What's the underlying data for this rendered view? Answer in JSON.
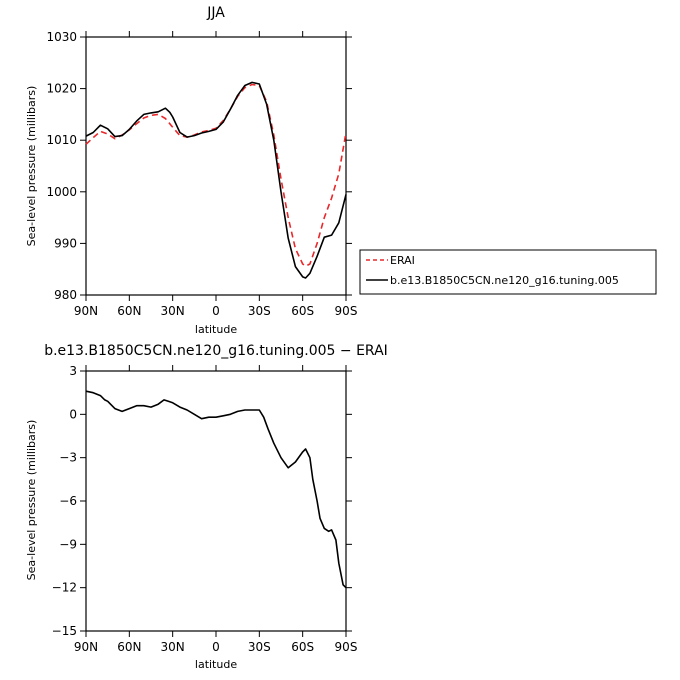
{
  "chart_data": [
    {
      "type": "line",
      "title": "JJA",
      "xlabel": "latitude",
      "ylabel": "Sea-level pressure (millibars)",
      "xlim": [
        90,
        -90
      ],
      "ylim": [
        980,
        1030
      ],
      "x_ticks": [
        90,
        60,
        30,
        0,
        -30,
        -60,
        -90
      ],
      "x_tick_labels": [
        "90N",
        "60N",
        "30N",
        "0",
        "30S",
        "60S",
        "90S"
      ],
      "y_ticks": [
        980,
        990,
        1000,
        1010,
        1020,
        1030
      ],
      "y_tick_labels": [
        "980",
        "990",
        "1000",
        "1010",
        "1020",
        "1030"
      ],
      "grid": false,
      "legend_position": "right",
      "series": [
        {
          "name": "ERAI",
          "color": "#e8282b",
          "dash": "dashed",
          "x": [
            90,
            85,
            80,
            75,
            70,
            65,
            60,
            55,
            50,
            45,
            40,
            35,
            32,
            30,
            25,
            20,
            15,
            10,
            5,
            0,
            -5,
            -10,
            -15,
            -20,
            -25,
            -30,
            -35,
            -40,
            -45,
            -50,
            -55,
            -60,
            -62,
            -65,
            -70,
            -75,
            -80,
            -85,
            -90
          ],
          "y": [
            1009.2,
            1010.5,
            1011.7,
            1011.2,
            1010.3,
            1011.0,
            1012.0,
            1013.2,
            1014.3,
            1014.8,
            1015.0,
            1014.2,
            1013.2,
            1012.5,
            1010.9,
            1010.6,
            1011.0,
            1011.6,
            1011.9,
            1012.3,
            1013.8,
            1016.0,
            1018.5,
            1020.2,
            1020.8,
            1020.6,
            1017.5,
            1011.0,
            1002.5,
            995.0,
            989.0,
            986.0,
            985.6,
            986.0,
            990.0,
            995.0,
            998.8,
            1003.5,
            1011.5
          ]
        },
        {
          "name": "b.e13.B1850C5CN.ne120_g16.tuning.005",
          "color": "#000000",
          "dash": "solid",
          "x": [
            90,
            85,
            80,
            75,
            70,
            65,
            60,
            55,
            50,
            45,
            40,
            35,
            32,
            30,
            25,
            20,
            15,
            10,
            5,
            0,
            -5,
            -10,
            -15,
            -20,
            -25,
            -30,
            -35,
            -40,
            -45,
            -50,
            -55,
            -60,
            -62,
            -65,
            -70,
            -75,
            -80,
            -85,
            -90
          ],
          "y": [
            1010.8,
            1011.5,
            1012.9,
            1012.2,
            1010.7,
            1010.9,
            1012.1,
            1013.7,
            1015.0,
            1015.3,
            1015.5,
            1016.2,
            1015.4,
            1014.5,
            1011.5,
            1010.6,
            1010.9,
            1011.4,
            1011.7,
            1012.1,
            1013.5,
            1016.0,
            1018.7,
            1020.6,
            1021.2,
            1020.9,
            1017.0,
            1010.0,
            1000.0,
            991.0,
            985.5,
            983.5,
            983.3,
            984.2,
            987.5,
            991.2,
            991.6,
            994.0,
            999.5
          ]
        }
      ]
    },
    {
      "type": "line",
      "title": "b.e13.B1850C5CN.ne120_g16.tuning.005 − ERAI",
      "xlabel": "latitude",
      "ylabel": "Sea-level pressure (millibars)",
      "xlim": [
        90,
        -90
      ],
      "ylim": [
        -15,
        3
      ],
      "x_ticks": [
        90,
        60,
        30,
        0,
        -30,
        -60,
        -90
      ],
      "x_tick_labels": [
        "90N",
        "60N",
        "30N",
        "0",
        "30S",
        "60S",
        "90S"
      ],
      "y_ticks": [
        3,
        0,
        -3,
        -6,
        -9,
        -12,
        -15
      ],
      "y_tick_labels": [
        "3",
        "0",
        "−3",
        "−6",
        "−9",
        "−12",
        "−15"
      ],
      "grid": false,
      "series": [
        {
          "color": "#000000",
          "dash": "solid",
          "x": [
            90,
            85,
            80,
            77,
            75,
            70,
            65,
            60,
            55,
            50,
            45,
            40,
            36,
            33,
            30,
            25,
            20,
            15,
            10,
            5,
            0,
            -5,
            -10,
            -15,
            -20,
            -25,
            -30,
            -33,
            -36,
            -40,
            -45,
            -50,
            -55,
            -60,
            -62,
            -65,
            -67,
            -70,
            -72,
            -75,
            -78,
            -80,
            -83,
            -85,
            -88,
            -90
          ],
          "y": [
            1.6,
            1.5,
            1.3,
            1.0,
            0.9,
            0.4,
            0.2,
            0.4,
            0.6,
            0.6,
            0.5,
            0.7,
            1.0,
            0.9,
            0.8,
            0.5,
            0.3,
            0.0,
            -0.3,
            -0.2,
            -0.2,
            -0.1,
            0.0,
            0.2,
            0.3,
            0.3,
            0.3,
            -0.2,
            -1.0,
            -2.0,
            -3.0,
            -3.7,
            -3.3,
            -2.6,
            -2.4,
            -3.0,
            -4.5,
            -6.0,
            -7.2,
            -7.9,
            -8.1,
            -8.0,
            -8.7,
            -10.3,
            -11.8,
            -12.0
          ]
        }
      ]
    }
  ]
}
